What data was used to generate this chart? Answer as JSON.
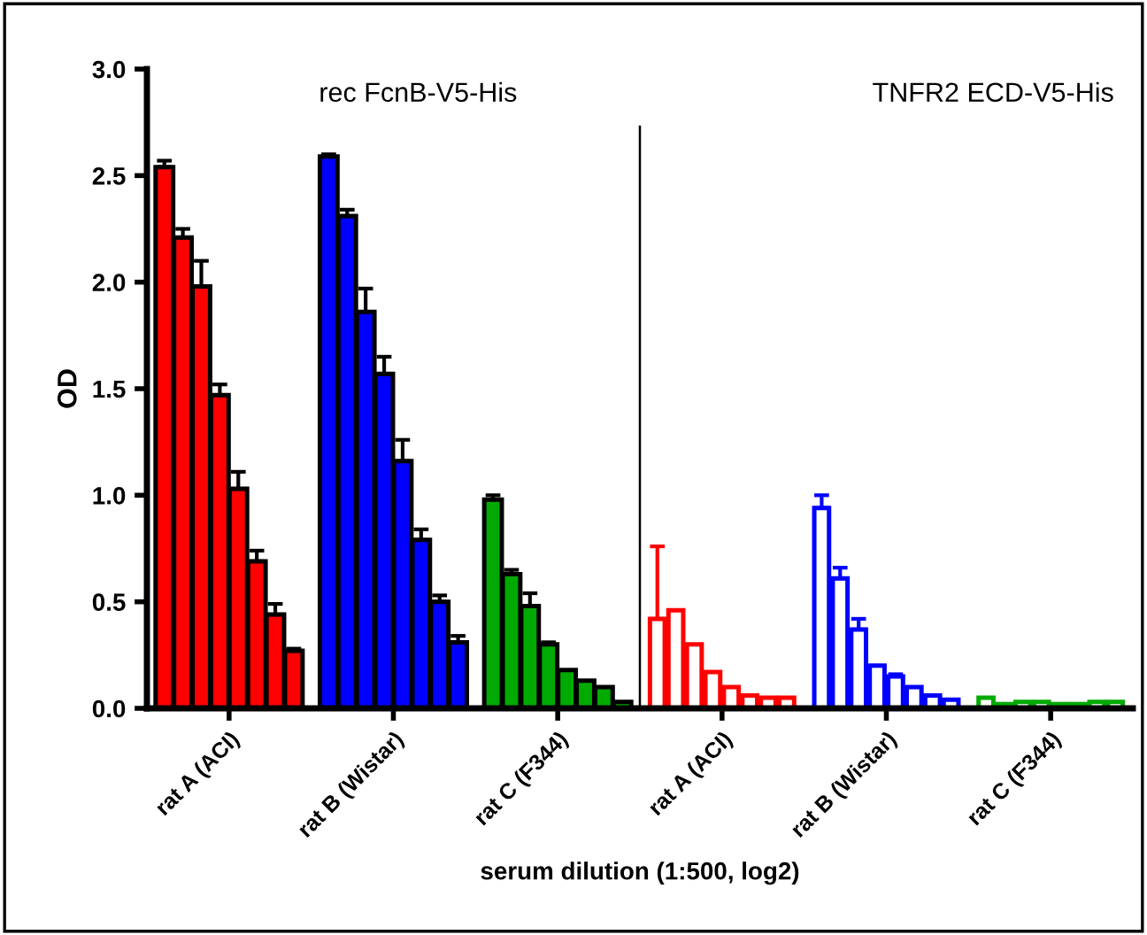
{
  "chart_data": {
    "type": "bar",
    "xlabel": "serum dilution (1:500, log2)",
    "ylabel": "OD",
    "categories": [
      "rat A (ACI)",
      "rat B (Wistar)",
      "rat C (F344)",
      "rat A (ACI)",
      "rat B (Wistar)",
      "rat C (F344)"
    ],
    "series": [
      {
        "colors": [
          "#ff0000",
          "#0000ff",
          "#00aa00",
          "#ff0000",
          "#0000ff",
          "#00aa00"
        ],
        "values": [
          2.54,
          2.59,
          0.98,
          0.42,
          0.94,
          0.05
        ],
        "errors": [
          [
            2.54,
            2.57
          ],
          [
            2.59,
            2.6
          ],
          [
            0.98,
            1.0
          ],
          [
            0.42,
            0.76
          ],
          [
            0.94,
            1.0
          ],
          null
        ]
      },
      {
        "colors": [
          "#ff0000",
          "#0000ff",
          "#00aa00",
          "#ff0000",
          "#0000ff",
          "#00aa00"
        ],
        "values": [
          2.21,
          2.31,
          0.63,
          0.46,
          0.61,
          0.02
        ],
        "errors": [
          [
            2.21,
            2.25
          ],
          [
            2.31,
            2.34
          ],
          [
            0.63,
            0.65
          ],
          null,
          [
            0.61,
            0.66
          ],
          null
        ]
      },
      {
        "colors": [
          "#ff0000",
          "#0000ff",
          "#00aa00",
          "#ff0000",
          "#0000ff",
          "#00aa00"
        ],
        "values": [
          1.98,
          1.86,
          0.48,
          0.3,
          0.37,
          0.03
        ],
        "errors": [
          [
            1.98,
            2.1
          ],
          [
            1.86,
            1.97
          ],
          [
            0.48,
            0.54
          ],
          null,
          [
            0.37,
            0.42
          ],
          null
        ]
      },
      {
        "colors": [
          "#ff0000",
          "#0000ff",
          "#00aa00",
          "#ff0000",
          "#0000ff",
          "#00aa00"
        ],
        "values": [
          1.47,
          1.57,
          0.3,
          0.17,
          0.2,
          0.03
        ],
        "errors": [
          [
            1.47,
            1.52
          ],
          [
            1.57,
            1.65
          ],
          [
            0.3,
            0.31
          ],
          null,
          null,
          null
        ]
      },
      {
        "colors": [
          "#ff0000",
          "#0000ff",
          "#00aa00",
          "#ff0000",
          "#0000ff",
          "#00aa00"
        ],
        "values": [
          1.03,
          1.16,
          0.18,
          0.1,
          0.15,
          0.02
        ],
        "errors": [
          [
            1.03,
            1.11
          ],
          [
            1.16,
            1.26
          ],
          null,
          null,
          [
            0.15,
            0.16
          ],
          null
        ]
      },
      {
        "colors": [
          "#ff0000",
          "#0000ff",
          "#00aa00",
          "#ff0000",
          "#0000ff",
          "#00aa00"
        ],
        "values": [
          0.69,
          0.79,
          0.13,
          0.06,
          0.1,
          0.02
        ],
        "errors": [
          [
            0.69,
            0.74
          ],
          [
            0.79,
            0.84
          ],
          null,
          null,
          null,
          null
        ]
      },
      {
        "colors": [
          "#ff0000",
          "#0000ff",
          "#00aa00",
          "#ff0000",
          "#0000ff",
          "#00aa00"
        ],
        "values": [
          0.44,
          0.5,
          0.1,
          0.05,
          0.06,
          0.03
        ],
        "errors": [
          [
            0.44,
            0.49
          ],
          [
            0.5,
            0.53
          ],
          null,
          null,
          null,
          null
        ]
      },
      {
        "colors": [
          "#ff0000",
          "#0000ff",
          "#00aa00",
          "#ff0000",
          "#0000ff",
          "#00aa00"
        ],
        "values": [
          0.27,
          0.31,
          0.03,
          0.05,
          0.04,
          0.03
        ],
        "errors": [
          [
            0.27,
            0.28
          ],
          [
            0.31,
            0.34
          ],
          null,
          null,
          null,
          null
        ]
      }
    ],
    "ylim": [
      0,
      3.0
    ],
    "yticks": [
      {
        "value": 0,
        "label": "0.0"
      },
      {
        "value": 0.5,
        "label": "0.5"
      },
      {
        "value": 1.0,
        "label": "1.0"
      },
      {
        "value": 1.5,
        "label": "1.5"
      },
      {
        "value": 2.0,
        "label": "2.0"
      },
      {
        "value": 2.5,
        "label": "2.5"
      },
      {
        "value": 3.0,
        "label": "3.0"
      }
    ],
    "annotations": [
      "rec FcnB-V5-His",
      "TNFR2 ECD-V5-His"
    ],
    "grid": false,
    "legend": false
  }
}
